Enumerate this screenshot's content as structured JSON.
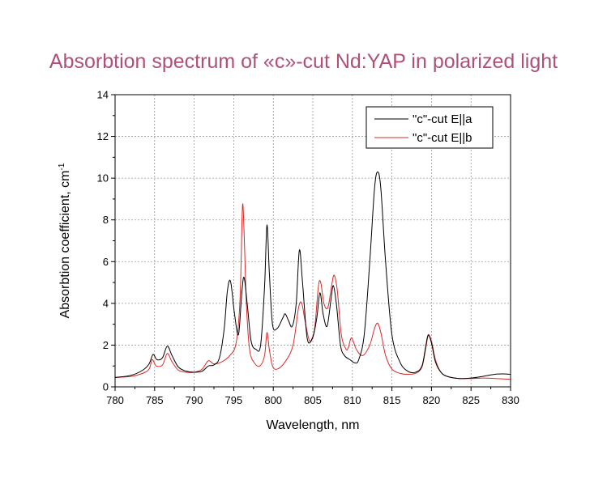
{
  "page": {
    "title": "Absorbtion spectrum of «c»-cut Nd:YAP in polarized light",
    "title_color": "#b0507a"
  },
  "chart_data": {
    "type": "line",
    "title": "Absorbtion spectrum of «c»-cut Nd:YAP in polarized light",
    "xlabel": "Wavelength, nm",
    "ylabel": "Absorbtion coefficient, cm-1",
    "ylabel_base": "Absorbtion coefficient, cm",
    "ylabel_superscript": "-1",
    "xlim": [
      780,
      830
    ],
    "ylim": [
      0,
      14
    ],
    "xticks": [
      780,
      785,
      790,
      795,
      800,
      805,
      810,
      815,
      820,
      825,
      830
    ],
    "yticks": [
      0,
      2,
      4,
      6,
      8,
      10,
      12,
      14
    ],
    "grid": true,
    "legend_position": "top-right",
    "series": [
      {
        "name": "\"c\"-cut E||a",
        "color": "#000000",
        "x": [
          780,
          782,
          783.5,
          784.3,
          784.8,
          785.3,
          786,
          786.6,
          787.2,
          788,
          789,
          790,
          791,
          791.8,
          792.5,
          793.2,
          793.8,
          794.2,
          794.6,
          795.1,
          795.6,
          796,
          796.3,
          796.7,
          797.2,
          797.8,
          798.4,
          798.9,
          799.2,
          799.5,
          799.9,
          800.5,
          801.2,
          801.5,
          801.9,
          802.4,
          802.9,
          803.3,
          803.7,
          804.3,
          805,
          805.5,
          805.9,
          806.3,
          806.8,
          807.3,
          807.6,
          808,
          808.5,
          809,
          809.7,
          810.3,
          810.8,
          811.5,
          812.2,
          812.8,
          813.2,
          813.6,
          814.2,
          815,
          816,
          817,
          818,
          818.8,
          819.3,
          819.6,
          820,
          820.5,
          821.2,
          822,
          823.5,
          825,
          826.5,
          828,
          829,
          830
        ],
        "y": [
          0.45,
          0.55,
          0.8,
          1.1,
          1.55,
          1.3,
          1.4,
          1.95,
          1.5,
          0.95,
          0.75,
          0.7,
          0.75,
          1.0,
          1.05,
          1.4,
          2.8,
          4.6,
          5.05,
          3.5,
          2.5,
          4.4,
          5.25,
          4.0,
          2.2,
          1.8,
          2.0,
          4.8,
          7.75,
          5.5,
          3.0,
          2.8,
          3.3,
          3.5,
          3.2,
          2.9,
          4.0,
          6.55,
          5.0,
          2.3,
          2.4,
          3.3,
          4.5,
          3.5,
          2.9,
          4.2,
          4.85,
          3.9,
          2.0,
          1.5,
          1.3,
          1.15,
          1.3,
          2.5,
          6.0,
          9.5,
          10.3,
          9.5,
          6.0,
          2.5,
          1.2,
          0.75,
          0.7,
          1.0,
          2.0,
          2.5,
          2.1,
          1.2,
          0.7,
          0.5,
          0.4,
          0.42,
          0.5,
          0.6,
          0.62,
          0.6
        ]
      },
      {
        "name": "\"c\"-cut E||b",
        "color": "#d92b2b",
        "x": [
          780,
          782,
          783.5,
          784.3,
          784.7,
          785.2,
          786,
          786.6,
          787.2,
          788,
          789,
          790,
          791,
          791.8,
          792.5,
          793.5,
          794.5,
          795.3,
          795.8,
          796.1,
          796.3,
          796.6,
          797,
          797.6,
          798.3,
          798.9,
          799.2,
          799.5,
          799.9,
          800.5,
          801.5,
          802.5,
          803.2,
          803.6,
          804,
          804.6,
          805.2,
          805.7,
          806,
          806.4,
          806.9,
          807.4,
          807.7,
          808.1,
          808.6,
          809.2,
          809.5,
          809.9,
          810.5,
          811.3,
          812.2,
          812.8,
          813.2,
          813.6,
          814.2,
          815,
          816,
          817,
          818,
          818.8,
          819.3,
          819.6,
          820,
          820.5,
          821.2,
          822,
          823.5,
          825,
          826.5,
          828,
          829,
          830
        ],
        "y": [
          0.45,
          0.5,
          0.65,
          0.85,
          1.3,
          1.0,
          1.05,
          1.6,
          1.2,
          0.8,
          0.7,
          0.7,
          0.85,
          1.25,
          1.1,
          1.2,
          1.5,
          2.1,
          4.2,
          8.6,
          7.5,
          4.0,
          1.8,
          1.15,
          1.0,
          1.5,
          2.6,
          1.8,
          1.0,
          0.85,
          1.2,
          2.0,
          3.8,
          4.0,
          3.2,
          2.2,
          2.7,
          4.8,
          5.0,
          4.0,
          3.8,
          4.9,
          5.35,
          4.6,
          2.5,
          1.8,
          1.9,
          2.35,
          1.8,
          1.5,
          2.0,
          2.8,
          3.05,
          2.6,
          1.5,
          0.85,
          0.65,
          0.6,
          0.65,
          0.95,
          1.9,
          2.45,
          2.2,
          1.3,
          0.7,
          0.5,
          0.4,
          0.4,
          0.42,
          0.4,
          0.38,
          0.36
        ]
      }
    ]
  }
}
